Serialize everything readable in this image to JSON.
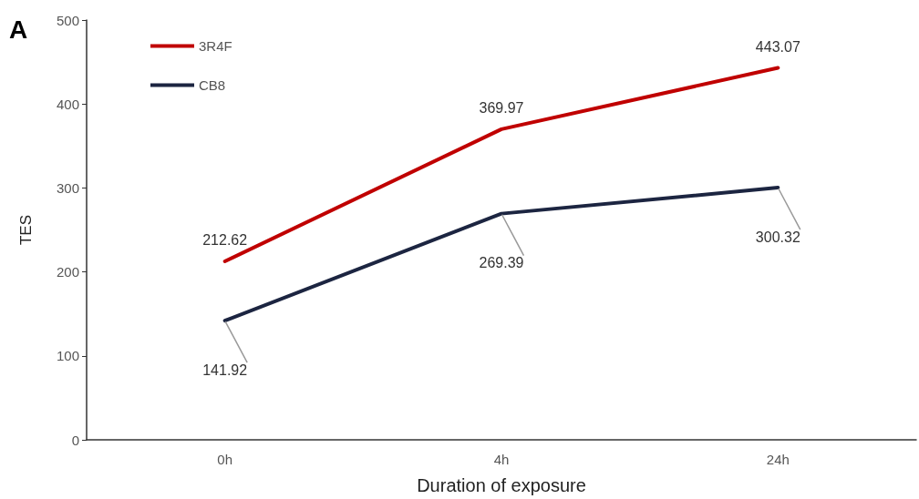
{
  "chart_data": {
    "type": "line",
    "xlabel": "Duration of exposure",
    "ylabel": "TES",
    "annotations": [
      "A"
    ],
    "categories": [
      "0h",
      "4h",
      "24h"
    ],
    "series": [
      {
        "name": "3R4F",
        "color": "#c00000",
        "values": [
          212.62,
          369.97,
          443.07
        ]
      },
      {
        "name": "CB8",
        "color": "#1c2541",
        "values": [
          141.92,
          269.39,
          300.32
        ]
      }
    ],
    "ylim": [
      0,
      500
    ],
    "yticks": [
      0,
      100,
      200,
      300,
      400,
      500
    ],
    "grid": false,
    "legend": "top left",
    "marker": "none",
    "line_style": "solid",
    "data_labels": true
  }
}
